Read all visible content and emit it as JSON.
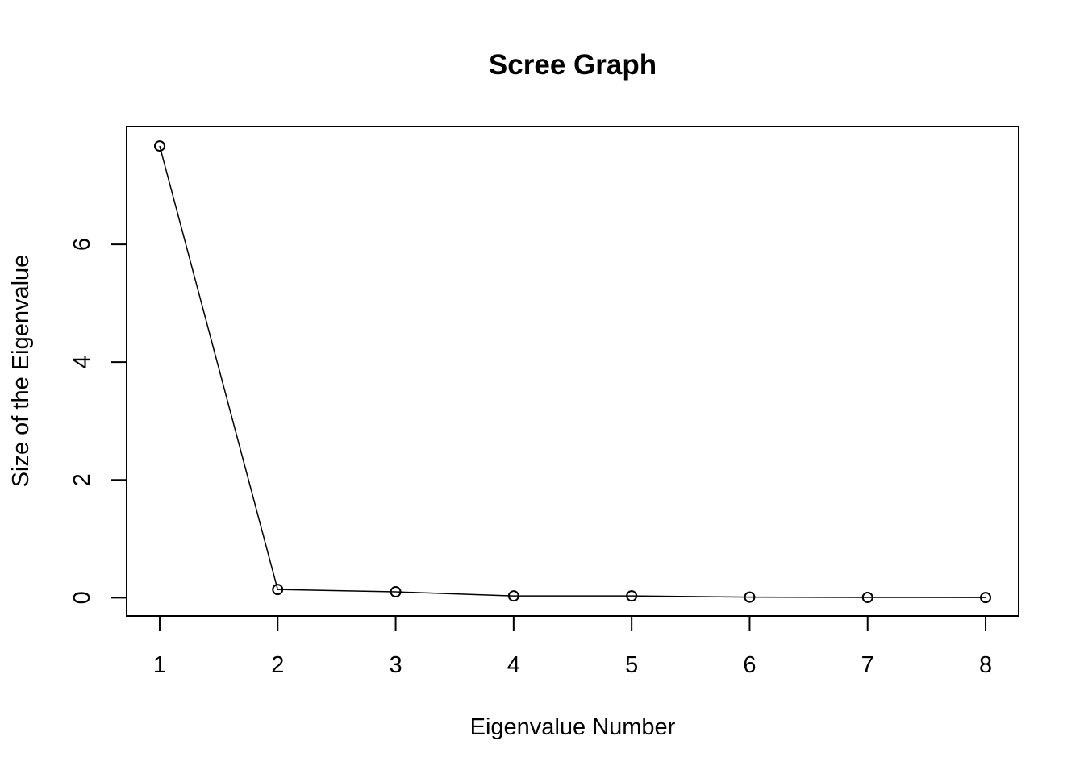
{
  "chart_data": {
    "type": "line",
    "title": "Scree Graph",
    "xlabel": "Eigenvalue Number",
    "ylabel": "Size of the Eigenvalue",
    "x": [
      1,
      2,
      3,
      4,
      5,
      6,
      7,
      8
    ],
    "values": [
      7.67,
      0.14,
      0.1,
      0.03,
      0.03,
      0.01,
      0.005,
      0.003
    ],
    "xlim": [
      0.72,
      8.28
    ],
    "ylim": [
      -0.31,
      8.0
    ],
    "xticks": [
      1,
      2,
      3,
      4,
      5,
      6,
      7,
      8
    ],
    "xtick_labels": [
      "1",
      "2",
      "3",
      "4",
      "5",
      "6",
      "7",
      "8"
    ],
    "yticks": [
      0,
      2,
      4,
      6
    ],
    "ytick_labels": [
      "0",
      "2",
      "4",
      "6"
    ],
    "marker": "open-circle",
    "grid": false,
    "legend": "none",
    "line_color": "#000000"
  }
}
